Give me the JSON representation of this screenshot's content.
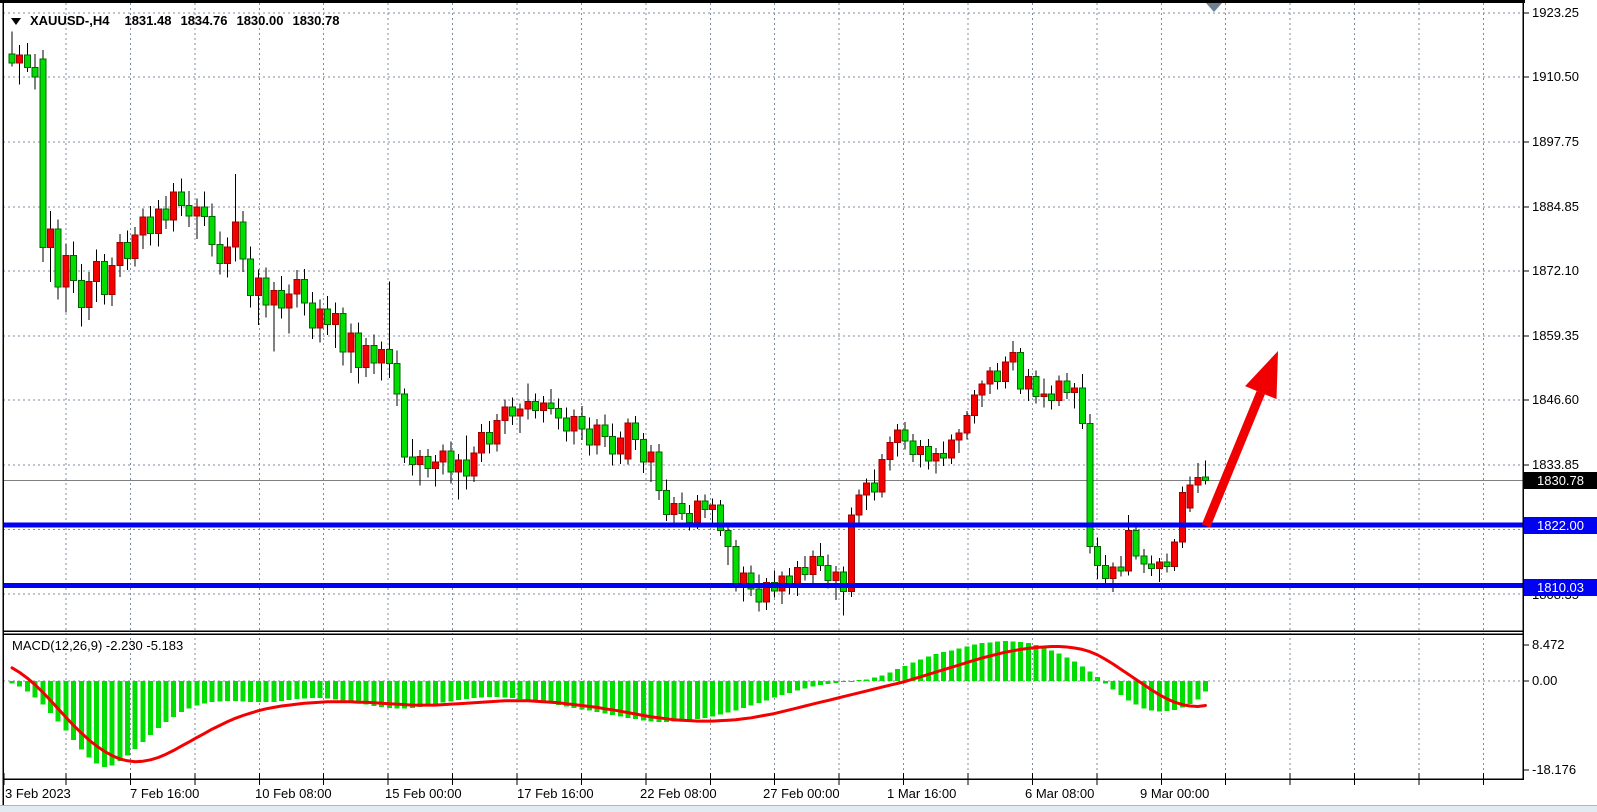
{
  "window": {
    "symbol_period": "XAUUSD-,H4",
    "ohlc": {
      "open": "1831.48",
      "high": "1834.76",
      "low": "1830.00",
      "close": "1830.78"
    }
  },
  "colors": {
    "bull_candle": "#f40000",
    "bear_candle": "#00dd00",
    "wick": "#000000",
    "grid": "#7f8da0",
    "level_line": "#0202f2",
    "current_price_line": "#808080",
    "current_price_box_bg": "#000000",
    "macd_histogram": "#00dd00",
    "macd_signal": "#f40000",
    "trend_arrow": "#f00000",
    "scroll_marker": "#6e8094"
  },
  "chart_data": {
    "type": "candlestick",
    "symbol": "XAUUSD",
    "timeframe": "H4",
    "title_ohlc_text": "1831.48 1834.76 1830.00 1830.78",
    "price_axis": {
      "labels": [
        "1923.25",
        "1910.50",
        "1897.75",
        "1884.85",
        "1872.10",
        "1859.35",
        "1846.60",
        "1833.85"
      ],
      "hidden_partial_label": "1808.35",
      "gridline_step": 12.75
    },
    "time_axis": {
      "labels": [
        "3 Feb 2023",
        "7 Feb 16:00",
        "10 Feb 08:00",
        "15 Feb 00:00",
        "17 Feb 16:00",
        "22 Feb 08:00",
        "27 Feb 00:00",
        "1 Mar 16:00",
        "6 Mar 08:00",
        "9 Mar 00:00"
      ]
    },
    "current_price": 1830.78,
    "levels": [
      {
        "label": "1822.00",
        "value": 1822.0,
        "role": "resistance"
      },
      {
        "label": "1810.03",
        "value": 1810.03,
        "role": "support"
      }
    ],
    "annotations": {
      "trend_arrow": "up-right from 1822.00 level toward 1859 area"
    },
    "candles": [
      [
        1915.0,
        1919.5,
        1912.5,
        1913.2
      ],
      [
        1913.2,
        1916.8,
        1909.0,
        1914.8
      ],
      [
        1914.8,
        1917.2,
        1911.5,
        1912.3
      ],
      [
        1912.3,
        1915.0,
        1908.0,
        1910.5
      ],
      [
        1914.0,
        1915.8,
        1873.9,
        1876.8
      ],
      [
        1876.8,
        1884.0,
        1870.0,
        1880.5
      ],
      [
        1880.5,
        1882.3,
        1866.5,
        1869.0
      ],
      [
        1869.0,
        1877.5,
        1864.0,
        1875.2
      ],
      [
        1875.2,
        1878.0,
        1867.8,
        1870.3
      ],
      [
        1870.3,
        1873.5,
        1861.2,
        1865.0
      ],
      [
        1865.0,
        1872.0,
        1862.5,
        1870.1
      ],
      [
        1870.1,
        1876.4,
        1866.0,
        1874.0
      ],
      [
        1874.0,
        1875.5,
        1865.5,
        1867.5
      ],
      [
        1867.5,
        1874.8,
        1865.2,
        1873.2
      ],
      [
        1873.2,
        1879.5,
        1871.0,
        1877.8
      ],
      [
        1877.8,
        1880.2,
        1872.4,
        1874.6
      ],
      [
        1874.6,
        1880.8,
        1873.0,
        1879.3
      ],
      [
        1879.3,
        1884.5,
        1876.5,
        1882.8
      ],
      [
        1882.8,
        1885.0,
        1877.2,
        1879.6
      ],
      [
        1879.6,
        1886.2,
        1877.0,
        1884.4
      ],
      [
        1884.4,
        1887.0,
        1880.5,
        1882.2
      ],
      [
        1882.2,
        1889.5,
        1880.0,
        1887.8
      ],
      [
        1887.8,
        1890.4,
        1883.0,
        1885.1
      ],
      [
        1885.1,
        1888.0,
        1880.8,
        1883.0
      ],
      [
        1883.0,
        1886.5,
        1878.5,
        1884.8
      ],
      [
        1884.8,
        1887.9,
        1881.0,
        1882.9
      ],
      [
        1882.9,
        1885.5,
        1875.0,
        1877.4
      ],
      [
        1877.4,
        1880.0,
        1871.5,
        1873.6
      ],
      [
        1873.6,
        1878.8,
        1870.9,
        1876.9
      ],
      [
        1876.9,
        1891.3,
        1874.0,
        1881.8
      ],
      [
        1881.8,
        1884.0,
        1872.0,
        1874.5
      ],
      [
        1874.5,
        1877.0,
        1865.0,
        1867.3
      ],
      [
        1867.3,
        1872.5,
        1861.5,
        1870.8
      ],
      [
        1870.8,
        1872.9,
        1863.0,
        1865.4
      ],
      [
        1865.4,
        1870.0,
        1856.3,
        1868.3
      ],
      [
        1868.3,
        1871.2,
        1862.8,
        1864.9
      ],
      [
        1864.9,
        1869.5,
        1859.8,
        1867.6
      ],
      [
        1867.6,
        1872.4,
        1865.0,
        1870.5
      ],
      [
        1870.5,
        1872.6,
        1863.4,
        1865.8
      ],
      [
        1865.8,
        1868.0,
        1858.7,
        1860.9
      ],
      [
        1860.9,
        1866.5,
        1858.0,
        1864.7
      ],
      [
        1864.7,
        1867.2,
        1859.5,
        1861.6
      ],
      [
        1861.6,
        1865.9,
        1857.0,
        1863.8
      ],
      [
        1863.8,
        1865.0,
        1853.5,
        1856.2
      ],
      [
        1856.2,
        1861.8,
        1852.0,
        1859.9
      ],
      [
        1859.9,
        1862.0,
        1849.9,
        1853.1
      ],
      [
        1853.1,
        1858.9,
        1851.2,
        1857.4
      ],
      [
        1857.4,
        1859.6,
        1851.8,
        1854.0
      ],
      [
        1854.0,
        1858.2,
        1850.5,
        1856.7
      ],
      [
        1856.7,
        1870.1,
        1851.0,
        1853.9
      ],
      [
        1853.9,
        1856.5,
        1845.5,
        1847.9
      ],
      [
        1847.9,
        1849.0,
        1834.2,
        1835.4
      ],
      [
        1835.4,
        1839.0,
        1831.8,
        1833.9
      ],
      [
        1833.9,
        1836.8,
        1829.8,
        1835.5
      ],
      [
        1835.5,
        1837.0,
        1831.4,
        1833.2
      ],
      [
        1833.2,
        1835.8,
        1829.6,
        1834.4
      ],
      [
        1834.4,
        1837.9,
        1832.0,
        1836.6
      ],
      [
        1836.6,
        1838.5,
        1830.2,
        1832.5
      ],
      [
        1832.5,
        1836.0,
        1827.0,
        1834.8
      ],
      [
        1834.8,
        1839.7,
        1829.0,
        1831.7
      ],
      [
        1831.7,
        1837.5,
        1830.5,
        1836.2
      ],
      [
        1836.2,
        1841.9,
        1834.4,
        1840.3
      ],
      [
        1840.3,
        1842.5,
        1836.1,
        1838.0
      ],
      [
        1838.0,
        1843.9,
        1836.5,
        1842.6
      ],
      [
        1842.6,
        1846.8,
        1840.0,
        1845.3
      ],
      [
        1845.3,
        1847.2,
        1841.7,
        1843.5
      ],
      [
        1843.5,
        1846.0,
        1840.2,
        1844.9
      ],
      [
        1844.9,
        1849.9,
        1842.8,
        1846.4
      ],
      [
        1846.4,
        1848.0,
        1843.0,
        1844.6
      ],
      [
        1844.6,
        1847.5,
        1842.2,
        1846.1
      ],
      [
        1846.1,
        1848.9,
        1843.8,
        1845.0
      ],
      [
        1845.0,
        1847.0,
        1840.9,
        1843.1
      ],
      [
        1843.1,
        1845.2,
        1838.5,
        1840.6
      ],
      [
        1840.6,
        1844.8,
        1837.9,
        1843.4
      ],
      [
        1843.4,
        1845.5,
        1838.8,
        1841.0
      ],
      [
        1841.0,
        1843.2,
        1835.7,
        1837.8
      ],
      [
        1837.8,
        1842.9,
        1835.9,
        1841.7
      ],
      [
        1841.7,
        1843.8,
        1837.4,
        1839.5
      ],
      [
        1839.5,
        1842.0,
        1833.8,
        1836.0
      ],
      [
        1836.0,
        1840.5,
        1834.0,
        1839.2
      ],
      [
        1835.0,
        1843.0,
        1833.9,
        1842.1
      ],
      [
        1842.1,
        1843.5,
        1836.8,
        1838.9
      ],
      [
        1838.9,
        1840.2,
        1832.3,
        1834.4
      ],
      [
        1834.4,
        1837.8,
        1830.5,
        1836.4
      ],
      [
        1836.4,
        1838.0,
        1826.9,
        1828.8
      ],
      [
        1828.8,
        1831.0,
        1822.8,
        1824.1
      ],
      [
        1824.1,
        1827.5,
        1821.8,
        1826.2
      ],
      [
        1826.2,
        1828.4,
        1823.0,
        1824.3
      ],
      [
        1824.3,
        1826.0,
        1820.9,
        1822.5
      ],
      [
        1822.5,
        1827.9,
        1821.2,
        1826.7
      ],
      [
        1826.7,
        1828.0,
        1823.4,
        1825.1
      ],
      [
        1825.1,
        1827.2,
        1822.0,
        1826.0
      ],
      [
        1826.0,
        1826.9,
        1819.8,
        1820.9
      ],
      [
        1820.9,
        1822.4,
        1814.1,
        1817.8
      ],
      [
        1817.8,
        1819.0,
        1808.9,
        1810.1
      ],
      [
        1810.1,
        1813.8,
        1806.9,
        1812.5
      ],
      [
        1812.5,
        1814.0,
        1808.0,
        1809.4
      ],
      [
        1809.4,
        1812.2,
        1804.9,
        1806.8
      ],
      [
        1806.8,
        1811.5,
        1805.2,
        1810.6
      ],
      [
        1810.6,
        1813.0,
        1807.7,
        1809.0
      ],
      [
        1809.0,
        1812.8,
        1806.4,
        1811.9
      ],
      [
        1811.9,
        1813.5,
        1808.3,
        1809.8
      ],
      [
        1809.8,
        1814.9,
        1808.0,
        1813.6
      ],
      [
        1813.6,
        1815.9,
        1811.0,
        1812.2
      ],
      [
        1812.2,
        1817.0,
        1810.5,
        1815.8
      ],
      [
        1815.8,
        1818.4,
        1812.9,
        1814.0
      ],
      [
        1814.0,
        1816.2,
        1809.5,
        1811.0
      ],
      [
        1811.0,
        1813.9,
        1807.2,
        1812.7
      ],
      [
        1812.7,
        1813.8,
        1804.1,
        1808.9
      ],
      [
        1808.9,
        1825.5,
        1807.8,
        1824.0
      ],
      [
        1824.0,
        1829.0,
        1821.5,
        1827.9
      ],
      [
        1827.9,
        1831.2,
        1825.0,
        1830.3
      ],
      [
        1830.3,
        1833.0,
        1826.8,
        1828.5
      ],
      [
        1828.5,
        1836.0,
        1827.4,
        1834.9
      ],
      [
        1834.9,
        1839.5,
        1832.8,
        1838.3
      ],
      [
        1838.3,
        1841.9,
        1835.5,
        1840.8
      ],
      [
        1840.8,
        1842.3,
        1836.9,
        1838.6
      ],
      [
        1838.6,
        1840.0,
        1834.4,
        1835.9
      ],
      [
        1835.9,
        1838.8,
        1833.4,
        1837.5
      ],
      [
        1837.5,
        1839.0,
        1833.0,
        1834.6
      ],
      [
        1834.6,
        1837.2,
        1832.2,
        1836.1
      ],
      [
        1836.1,
        1838.5,
        1833.7,
        1835.2
      ],
      [
        1835.2,
        1839.9,
        1834.0,
        1838.8
      ],
      [
        1838.8,
        1841.0,
        1836.2,
        1840.2
      ],
      [
        1840.2,
        1844.5,
        1838.9,
        1843.6
      ],
      [
        1843.6,
        1848.7,
        1842.0,
        1847.7
      ],
      [
        1847.7,
        1850.5,
        1845.3,
        1849.8
      ],
      [
        1849.8,
        1853.2,
        1847.9,
        1852.4
      ],
      [
        1852.4,
        1854.0,
        1848.8,
        1850.3
      ],
      [
        1850.3,
        1855.3,
        1849.0,
        1854.2
      ],
      [
        1854.2,
        1858.3,
        1852.5,
        1856.1
      ],
      [
        1856.1,
        1857.0,
        1847.9,
        1848.9
      ],
      [
        1848.9,
        1852.8,
        1846.5,
        1851.3
      ],
      [
        1851.3,
        1852.5,
        1846.0,
        1847.4
      ],
      [
        1847.4,
        1850.9,
        1845.2,
        1847.9
      ],
      [
        1847.9,
        1849.5,
        1844.8,
        1846.6
      ],
      [
        1846.6,
        1851.5,
        1845.5,
        1850.4
      ],
      [
        1850.4,
        1852.0,
        1846.9,
        1848.2
      ],
      [
        1848.2,
        1850.0,
        1845.0,
        1849.1
      ],
      [
        1849.1,
        1851.8,
        1841.0,
        1842.0
      ],
      [
        1842.0,
        1843.9,
        1816.4,
        1817.8
      ],
      [
        1817.8,
        1819.5,
        1811.3,
        1814.0
      ],
      [
        1814.0,
        1816.1,
        1809.6,
        1811.4
      ],
      [
        1811.4,
        1814.6,
        1808.8,
        1813.7
      ],
      [
        1813.7,
        1815.9,
        1811.8,
        1812.9
      ],
      [
        1812.9,
        1824.0,
        1812.0,
        1820.9
      ],
      [
        1820.9,
        1822.0,
        1815.2,
        1815.9
      ],
      [
        1815.9,
        1817.3,
        1812.5,
        1814.3
      ],
      [
        1814.3,
        1816.0,
        1811.9,
        1813.4
      ],
      [
        1813.4,
        1815.5,
        1810.7,
        1814.7
      ],
      [
        1814.7,
        1816.4,
        1812.6,
        1813.8
      ],
      [
        1813.8,
        1819.2,
        1812.9,
        1818.6
      ],
      [
        1818.6,
        1829.6,
        1817.5,
        1828.4
      ],
      [
        1825.4,
        1831.6,
        1824.6,
        1829.9
      ],
      [
        1829.9,
        1834.2,
        1828.3,
        1831.4
      ],
      [
        1831.48,
        1834.76,
        1830.0,
        1830.78
      ]
    ],
    "macd": {
      "label": "MACD(12,26,9) -2.230 -5.183",
      "main_value": "-2.230",
      "signal_value": "-5.183",
      "axis_max": "8.472",
      "axis_zero": "0.00",
      "axis_min": "-18.176",
      "histogram": [
        -0.5,
        -1.2,
        -2.2,
        -3.5,
        -5.0,
        -6.8,
        -8.6,
        -10.5,
        -12.5,
        -14.5,
        -16.2,
        -17.5,
        -18.2,
        -17.9,
        -17.0,
        -15.8,
        -14.4,
        -12.9,
        -11.4,
        -10.0,
        -8.7,
        -7.6,
        -6.6,
        -5.8,
        -5.2,
        -4.8,
        -4.5,
        -4.3,
        -4.2,
        -4.2,
        -4.3,
        -4.4,
        -4.5,
        -4.5,
        -4.4,
        -4.2,
        -4.0,
        -3.8,
        -3.7,
        -3.6,
        -3.6,
        -3.7,
        -3.9,
        -4.1,
        -4.4,
        -4.7,
        -5.0,
        -5.3,
        -5.5,
        -5.7,
        -5.8,
        -5.8,
        -5.7,
        -5.5,
        -5.2,
        -4.9,
        -4.6,
        -4.3,
        -4.0,
        -3.8,
        -3.6,
        -3.5,
        -3.4,
        -3.4,
        -3.5,
        -3.6,
        -3.8,
        -4.0,
        -4.2,
        -4.5,
        -4.8,
        -5.1,
        -5.4,
        -5.7,
        -6.0,
        -6.3,
        -6.6,
        -6.9,
        -7.2,
        -7.5,
        -7.8,
        -8.1,
        -8.4,
        -8.6,
        -8.7,
        -8.7,
        -8.6,
        -8.5,
        -8.3,
        -8.1,
        -7.8,
        -7.5,
        -7.1,
        -6.7,
        -6.2,
        -5.7,
        -5.2,
        -4.7,
        -4.1,
        -3.5,
        -3.0,
        -2.5,
        -2.0,
        -1.6,
        -1.2,
        -0.9,
        -0.6,
        -0.4,
        -0.2,
        -0.1,
        0.1,
        0.3,
        0.7,
        1.2,
        1.8,
        2.5,
        3.2,
        3.9,
        4.6,
        5.2,
        5.7,
        6.1,
        6.5,
        6.9,
        7.3,
        7.7,
        8.0,
        8.2,
        8.4,
        8.47,
        8.4,
        8.3,
        8.0,
        7.6,
        7.1,
        6.5,
        5.8,
        5.0,
        4.1,
        3.1,
        2.0,
        0.8,
        -0.5,
        -1.8,
        -3.0,
        -4.1,
        -5.0,
        -5.8,
        -6.3,
        -6.5,
        -6.4,
        -6.1,
        -5.6,
        -4.9,
        -3.9,
        -2.23
      ],
      "signal": [
        2.8,
        1.8,
        0.6,
        -0.8,
        -2.4,
        -4.1,
        -5.9,
        -7.7,
        -9.4,
        -11.0,
        -12.5,
        -13.8,
        -14.9,
        -15.8,
        -16.5,
        -16.9,
        -17.1,
        -17.0,
        -16.7,
        -16.2,
        -15.5,
        -14.7,
        -13.8,
        -12.9,
        -12.0,
        -11.1,
        -10.2,
        -9.4,
        -8.6,
        -7.9,
        -7.3,
        -6.8,
        -6.3,
        -5.9,
        -5.6,
        -5.3,
        -5.1,
        -4.9,
        -4.7,
        -4.6,
        -4.5,
        -4.4,
        -4.4,
        -4.4,
        -4.4,
        -4.5,
        -4.5,
        -4.6,
        -4.7,
        -4.8,
        -4.9,
        -5.0,
        -5.1,
        -5.1,
        -5.1,
        -5.1,
        -5.0,
        -4.9,
        -4.8,
        -4.7,
        -4.6,
        -4.5,
        -4.4,
        -4.3,
        -4.2,
        -4.2,
        -4.2,
        -4.2,
        -4.3,
        -4.4,
        -4.5,
        -4.6,
        -4.8,
        -5.0,
        -5.2,
        -5.4,
        -5.6,
        -5.9,
        -6.1,
        -6.4,
        -6.7,
        -7.0,
        -7.3,
        -7.6,
        -7.8,
        -8.0,
        -8.2,
        -8.3,
        -8.4,
        -8.5,
        -8.5,
        -8.5,
        -8.4,
        -8.3,
        -8.2,
        -8.0,
        -7.8,
        -7.5,
        -7.2,
        -6.9,
        -6.5,
        -6.1,
        -5.7,
        -5.3,
        -4.9,
        -4.5,
        -4.1,
        -3.7,
        -3.3,
        -2.9,
        -2.5,
        -2.1,
        -1.7,
        -1.3,
        -0.9,
        -0.5,
        -0.1,
        0.4,
        0.9,
        1.4,
        1.9,
        2.4,
        2.9,
        3.4,
        3.9,
        4.4,
        4.9,
        5.3,
        5.7,
        6.1,
        6.4,
        6.7,
        6.9,
        7.1,
        7.2,
        7.3,
        7.3,
        7.2,
        7.0,
        6.7,
        6.2,
        5.5,
        4.6,
        3.6,
        2.5,
        1.4,
        0.3,
        -0.8,
        -1.9,
        -2.9,
        -3.8,
        -4.5,
        -5.0,
        -5.3,
        -5.4,
        -5.183
      ]
    }
  }
}
